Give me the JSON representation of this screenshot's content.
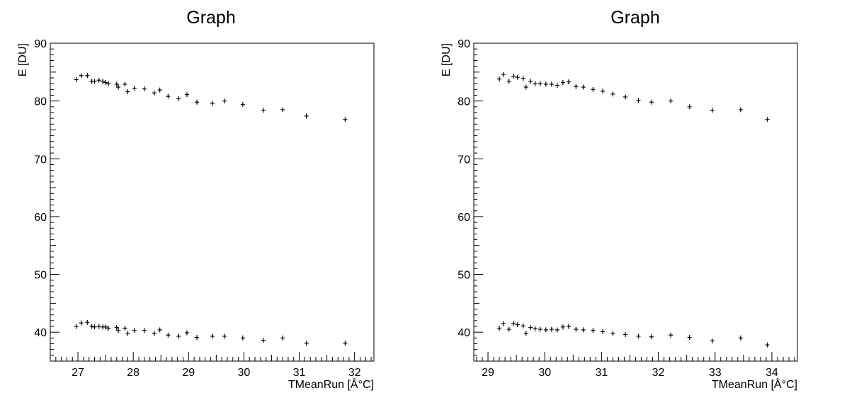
{
  "chart_data": [
    {
      "type": "scatter",
      "title": "Graph",
      "xlabel": "TMeanRun [Â°C]",
      "ylabel": "E [DU]",
      "xlim": [
        26.5,
        32.35
      ],
      "ylim": [
        35,
        90
      ],
      "xticks": [
        27,
        28,
        29,
        30,
        31,
        32
      ],
      "yticks": [
        40,
        50,
        60,
        70,
        80,
        90
      ],
      "grid": false,
      "series": [
        {
          "points": [
            [
              26.97,
              83.7
            ],
            [
              27.06,
              84.4
            ],
            [
              27.17,
              84.4
            ],
            [
              27.25,
              83.4
            ],
            [
              27.3,
              83.4
            ],
            [
              27.38,
              83.6
            ],
            [
              27.45,
              83.4
            ],
            [
              27.5,
              83.2
            ],
            [
              27.55,
              83.0
            ],
            [
              27.7,
              82.9
            ],
            [
              27.73,
              82.4
            ],
            [
              27.85,
              82.9
            ],
            [
              27.9,
              81.6
            ],
            [
              28.02,
              82.2
            ],
            [
              28.2,
              82.1
            ],
            [
              28.38,
              81.4
            ],
            [
              28.48,
              81.9
            ],
            [
              28.63,
              80.8
            ],
            [
              28.82,
              80.4
            ],
            [
              28.97,
              81.1
            ],
            [
              29.15,
              79.8
            ],
            [
              29.43,
              79.6
            ],
            [
              29.65,
              80.0
            ],
            [
              29.98,
              79.4
            ],
            [
              30.35,
              78.4
            ],
            [
              30.7,
              78.5
            ],
            [
              31.13,
              77.4
            ],
            [
              31.83,
              76.8
            ]
          ]
        },
        {
          "points": [
            [
              26.97,
              41.0
            ],
            [
              27.06,
              41.6
            ],
            [
              27.17,
              41.7
            ],
            [
              27.25,
              41.0
            ],
            [
              27.3,
              40.9
            ],
            [
              27.38,
              41.0
            ],
            [
              27.45,
              40.9
            ],
            [
              27.5,
              40.9
            ],
            [
              27.55,
              40.7
            ],
            [
              27.7,
              40.8
            ],
            [
              27.73,
              40.3
            ],
            [
              27.85,
              40.7
            ],
            [
              27.9,
              39.8
            ],
            [
              28.02,
              40.3
            ],
            [
              28.2,
              40.3
            ],
            [
              28.38,
              39.8
            ],
            [
              28.48,
              40.4
            ],
            [
              28.63,
              39.5
            ],
            [
              28.82,
              39.3
            ],
            [
              28.97,
              39.9
            ],
            [
              29.15,
              39.1
            ],
            [
              29.43,
              39.3
            ],
            [
              29.65,
              39.3
            ],
            [
              29.98,
              39.0
            ],
            [
              30.35,
              38.6
            ],
            [
              30.7,
              39.0
            ],
            [
              31.13,
              38.1
            ],
            [
              31.83,
              38.1
            ]
          ]
        }
      ]
    },
    {
      "type": "scatter",
      "title": "Graph",
      "xlabel": "TMeanRun [Â°C]",
      "ylabel": "E [DU]",
      "xlim": [
        28.75,
        34.45
      ],
      "ylim": [
        35,
        90
      ],
      "xticks": [
        29,
        30,
        31,
        32,
        33,
        34
      ],
      "yticks": [
        40,
        50,
        60,
        70,
        80,
        90
      ],
      "grid": false,
      "series": [
        {
          "points": [
            [
              29.2,
              83.8
            ],
            [
              29.27,
              84.6
            ],
            [
              29.37,
              83.4
            ],
            [
              29.45,
              84.3
            ],
            [
              29.52,
              84.1
            ],
            [
              29.62,
              83.9
            ],
            [
              29.67,
              82.4
            ],
            [
              29.75,
              83.4
            ],
            [
              29.83,
              83.0
            ],
            [
              29.92,
              83.0
            ],
            [
              30.02,
              82.9
            ],
            [
              30.12,
              82.9
            ],
            [
              30.22,
              82.7
            ],
            [
              30.32,
              83.2
            ],
            [
              30.42,
              83.3
            ],
            [
              30.55,
              82.5
            ],
            [
              30.68,
              82.4
            ],
            [
              30.85,
              82.0
            ],
            [
              31.02,
              81.7
            ],
            [
              31.2,
              81.2
            ],
            [
              31.42,
              80.7
            ],
            [
              31.65,
              80.1
            ],
            [
              31.88,
              79.8
            ],
            [
              32.22,
              80.0
            ],
            [
              32.55,
              79.0
            ],
            [
              32.95,
              78.4
            ],
            [
              33.45,
              78.5
            ],
            [
              33.92,
              76.8
            ]
          ]
        },
        {
          "points": [
            [
              29.2,
              40.7
            ],
            [
              29.27,
              41.5
            ],
            [
              29.37,
              40.5
            ],
            [
              29.45,
              41.5
            ],
            [
              29.52,
              41.3
            ],
            [
              29.62,
              41.1
            ],
            [
              29.67,
              39.8
            ],
            [
              29.75,
              40.8
            ],
            [
              29.83,
              40.6
            ],
            [
              29.92,
              40.5
            ],
            [
              30.02,
              40.4
            ],
            [
              30.12,
              40.5
            ],
            [
              30.22,
              40.4
            ],
            [
              30.32,
              40.9
            ],
            [
              30.42,
              41.0
            ],
            [
              30.55,
              40.5
            ],
            [
              30.68,
              40.4
            ],
            [
              30.85,
              40.3
            ],
            [
              31.02,
              40.1
            ],
            [
              31.2,
              39.8
            ],
            [
              31.42,
              39.6
            ],
            [
              31.65,
              39.3
            ],
            [
              31.88,
              39.2
            ],
            [
              32.22,
              39.5
            ],
            [
              32.55,
              39.1
            ],
            [
              32.95,
              38.5
            ],
            [
              33.45,
              39.0
            ],
            [
              33.92,
              37.8
            ]
          ]
        }
      ]
    }
  ]
}
